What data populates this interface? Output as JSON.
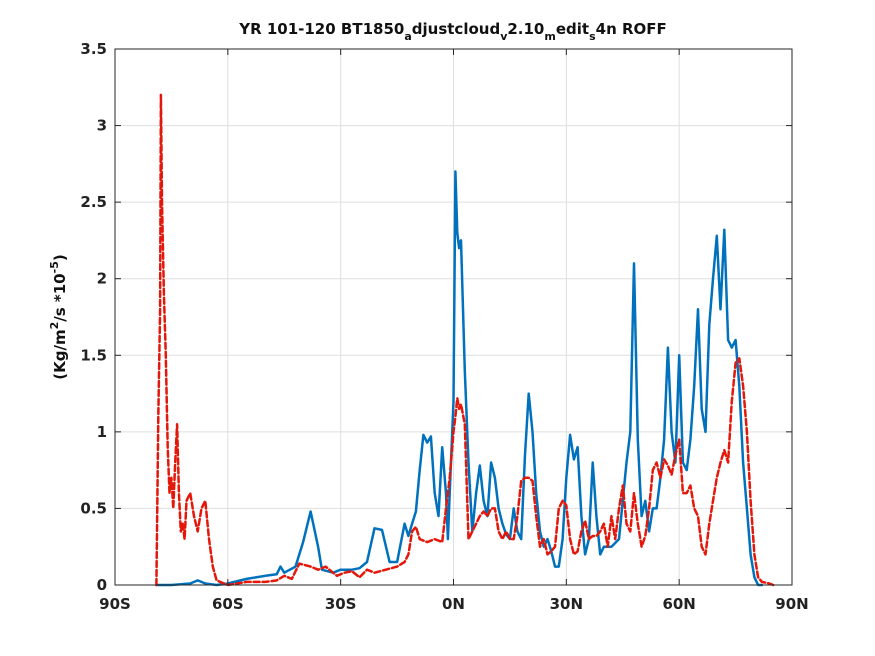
{
  "chart_data": {
    "type": "line",
    "title": "YR 101-120 BT1850adjustcloudv2.10medits4n ROFF",
    "title_parts": [
      "YR 101-120 BT1850",
      "a",
      "djustcloud",
      "v",
      "2.10",
      "m",
      "edit",
      "s",
      "4n ROFF"
    ],
    "ylabel": "(Kg/m2/s   *10-5)",
    "ylabel_parts": [
      "(Kg/m",
      "2",
      "/s   *10",
      "-5",
      ")"
    ],
    "xlim": [
      -90,
      90
    ],
    "ylim": [
      0,
      3.5
    ],
    "grid": true,
    "x_ticks": [
      {
        "v": -90,
        "label": "90S"
      },
      {
        "v": -60,
        "label": "60S"
      },
      {
        "v": -30,
        "label": "30S"
      },
      {
        "v": 0,
        "label": "0N"
      },
      {
        "v": 30,
        "label": "30N"
      },
      {
        "v": 60,
        "label": "60N"
      },
      {
        "v": 90,
        "label": "90N"
      }
    ],
    "y_ticks": [
      {
        "v": 0,
        "label": "0"
      },
      {
        "v": 0.5,
        "label": "0.5"
      },
      {
        "v": 1,
        "label": "1"
      },
      {
        "v": 1.5,
        "label": "1.5"
      },
      {
        "v": 2,
        "label": "2"
      },
      {
        "v": 2.5,
        "label": "2.5"
      },
      {
        "v": 3,
        "label": "3"
      },
      {
        "v": 3.5,
        "label": "3.5"
      }
    ],
    "series": [
      {
        "color": "#0072BD",
        "style": "solid",
        "points": [
          [
            -79,
            0
          ],
          [
            -75,
            0
          ],
          [
            -70,
            0.01
          ],
          [
            -68,
            0.03
          ],
          [
            -66,
            0.01
          ],
          [
            -63,
            0
          ],
          [
            -60,
            0.01
          ],
          [
            -55,
            0.04
          ],
          [
            -50,
            0.06
          ],
          [
            -47,
            0.07
          ],
          [
            -46,
            0.12
          ],
          [
            -45,
            0.08
          ],
          [
            -42,
            0.12
          ],
          [
            -40,
            0.28
          ],
          [
            -38,
            0.48
          ],
          [
            -36,
            0.25
          ],
          [
            -35,
            0.1
          ],
          [
            -32,
            0.08
          ],
          [
            -30,
            0.1
          ],
          [
            -27,
            0.1
          ],
          [
            -25,
            0.11
          ],
          [
            -23,
            0.15
          ],
          [
            -21,
            0.37
          ],
          [
            -19,
            0.36
          ],
          [
            -17,
            0.15
          ],
          [
            -15,
            0.15
          ],
          [
            -13,
            0.4
          ],
          [
            -12,
            0.32
          ],
          [
            -11,
            0.4
          ],
          [
            -10,
            0.48
          ],
          [
            -9,
            0.75
          ],
          [
            -8,
            0.98
          ],
          [
            -7,
            0.93
          ],
          [
            -6,
            0.97
          ],
          [
            -5,
            0.6
          ],
          [
            -4,
            0.45
          ],
          [
            -3,
            0.9
          ],
          [
            -2,
            0.6
          ],
          [
            -1.5,
            0.3
          ],
          [
            -1,
            0.6
          ],
          [
            0,
            1.2
          ],
          [
            0.5,
            2.7
          ],
          [
            1,
            2.3
          ],
          [
            1.5,
            2.2
          ],
          [
            2,
            2.25
          ],
          [
            3,
            1.4
          ],
          [
            4,
            0.8
          ],
          [
            5,
            0.35
          ],
          [
            6,
            0.6
          ],
          [
            7,
            0.78
          ],
          [
            8,
            0.55
          ],
          [
            9,
            0.45
          ],
          [
            10,
            0.8
          ],
          [
            11,
            0.7
          ],
          [
            12,
            0.5
          ],
          [
            13,
            0.4
          ],
          [
            14,
            0.33
          ],
          [
            15,
            0.3
          ],
          [
            16,
            0.5
          ],
          [
            17,
            0.35
          ],
          [
            18,
            0.3
          ],
          [
            19,
            0.85
          ],
          [
            20,
            1.25
          ],
          [
            21,
            1.0
          ],
          [
            22,
            0.6
          ],
          [
            23,
            0.35
          ],
          [
            24,
            0.25
          ],
          [
            25,
            0.3
          ],
          [
            26,
            0.22
          ],
          [
            27,
            0.12
          ],
          [
            28,
            0.12
          ],
          [
            29,
            0.3
          ],
          [
            30,
            0.7
          ],
          [
            31,
            0.98
          ],
          [
            32,
            0.82
          ],
          [
            33,
            0.9
          ],
          [
            34,
            0.45
          ],
          [
            35,
            0.2
          ],
          [
            36,
            0.3
          ],
          [
            37,
            0.8
          ],
          [
            38,
            0.45
          ],
          [
            39,
            0.2
          ],
          [
            40,
            0.25
          ],
          [
            42,
            0.25
          ],
          [
            44,
            0.3
          ],
          [
            46,
            0.8
          ],
          [
            47,
            1.0
          ],
          [
            48,
            2.1
          ],
          [
            49,
            0.95
          ],
          [
            50,
            0.45
          ],
          [
            51,
            0.55
          ],
          [
            52,
            0.35
          ],
          [
            53,
            0.5
          ],
          [
            54,
            0.5
          ],
          [
            55,
            0.7
          ],
          [
            56,
            0.95
          ],
          [
            57,
            1.55
          ],
          [
            58,
            1.0
          ],
          [
            59,
            0.8
          ],
          [
            60,
            1.5
          ],
          [
            61,
            0.8
          ],
          [
            62,
            0.75
          ],
          [
            63,
            0.95
          ],
          [
            64,
            1.3
          ],
          [
            65,
            1.8
          ],
          [
            66,
            1.15
          ],
          [
            67,
            1.0
          ],
          [
            68,
            1.7
          ],
          [
            69,
            2.0
          ],
          [
            70,
            2.28
          ],
          [
            71,
            1.8
          ],
          [
            72,
            2.32
          ],
          [
            73,
            1.6
          ],
          [
            74,
            1.55
          ],
          [
            75,
            1.6
          ],
          [
            76,
            1.3
          ],
          [
            77,
            0.8
          ],
          [
            78,
            0.5
          ],
          [
            79,
            0.2
          ],
          [
            80,
            0.05
          ],
          [
            81,
            0
          ],
          [
            82,
            0
          ]
        ]
      },
      {
        "color": "#E3170A",
        "style": "dashed",
        "points": [
          [
            -79,
            0
          ],
          [
            -78.5,
            1.1
          ],
          [
            -78,
            1.8
          ],
          [
            -77.8,
            3.2
          ],
          [
            -77.5,
            2.5
          ],
          [
            -77,
            1.9
          ],
          [
            -76.5,
            1.5
          ],
          [
            -76,
            0.9
          ],
          [
            -75.5,
            0.6
          ],
          [
            -75,
            0.7
          ],
          [
            -74.5,
            0.5
          ],
          [
            -74,
            0.8
          ],
          [
            -73.5,
            1.05
          ],
          [
            -73,
            0.6
          ],
          [
            -72.5,
            0.35
          ],
          [
            -72,
            0.4
          ],
          [
            -71.5,
            0.3
          ],
          [
            -71,
            0.55
          ],
          [
            -70,
            0.6
          ],
          [
            -69,
            0.45
          ],
          [
            -68,
            0.35
          ],
          [
            -67,
            0.5
          ],
          [
            -66,
            0.55
          ],
          [
            -65,
            0.3
          ],
          [
            -64,
            0.12
          ],
          [
            -63,
            0.03
          ],
          [
            -60,
            0
          ],
          [
            -55,
            0.02
          ],
          [
            -50,
            0.02
          ],
          [
            -47,
            0.03
          ],
          [
            -45,
            0.06
          ],
          [
            -43,
            0.04
          ],
          [
            -41,
            0.14
          ],
          [
            -38,
            0.12
          ],
          [
            -36,
            0.1
          ],
          [
            -34,
            0.12
          ],
          [
            -31,
            0.06
          ],
          [
            -29,
            0.08
          ],
          [
            -27,
            0.09
          ],
          [
            -25,
            0.05
          ],
          [
            -23,
            0.1
          ],
          [
            -21,
            0.08
          ],
          [
            -18,
            0.1
          ],
          [
            -15,
            0.12
          ],
          [
            -13,
            0.15
          ],
          [
            -12,
            0.2
          ],
          [
            -11,
            0.35
          ],
          [
            -10,
            0.38
          ],
          [
            -9,
            0.3
          ],
          [
            -7,
            0.28
          ],
          [
            -5,
            0.3
          ],
          [
            -3,
            0.28
          ],
          [
            -2,
            0.5
          ],
          [
            -1,
            0.7
          ],
          [
            0,
            1.0
          ],
          [
            0.5,
            1.1
          ],
          [
            1,
            1.22
          ],
          [
            1.5,
            1.15
          ],
          [
            2,
            1.18
          ],
          [
            3,
            1.05
          ],
          [
            4,
            0.3
          ],
          [
            5,
            0.35
          ],
          [
            6,
            0.4
          ],
          [
            7,
            0.45
          ],
          [
            8,
            0.48
          ],
          [
            9,
            0.45
          ],
          [
            10,
            0.5
          ],
          [
            11,
            0.5
          ],
          [
            12,
            0.35
          ],
          [
            13,
            0.3
          ],
          [
            14,
            0.35
          ],
          [
            15,
            0.3
          ],
          [
            16,
            0.3
          ],
          [
            17,
            0.45
          ],
          [
            18,
            0.68
          ],
          [
            19,
            0.7
          ],
          [
            20,
            0.7
          ],
          [
            21,
            0.68
          ],
          [
            22,
            0.45
          ],
          [
            23,
            0.25
          ],
          [
            24,
            0.3
          ],
          [
            25,
            0.2
          ],
          [
            26,
            0.22
          ],
          [
            27,
            0.25
          ],
          [
            28,
            0.5
          ],
          [
            29,
            0.55
          ],
          [
            30,
            0.52
          ],
          [
            31,
            0.3
          ],
          [
            32,
            0.2
          ],
          [
            33,
            0.22
          ],
          [
            34,
            0.35
          ],
          [
            35,
            0.42
          ],
          [
            36,
            0.3
          ],
          [
            37,
            0.32
          ],
          [
            38,
            0.32
          ],
          [
            39,
            0.35
          ],
          [
            40,
            0.4
          ],
          [
            41,
            0.25
          ],
          [
            42,
            0.45
          ],
          [
            43,
            0.3
          ],
          [
            44,
            0.5
          ],
          [
            45,
            0.65
          ],
          [
            46,
            0.4
          ],
          [
            47,
            0.35
          ],
          [
            48,
            0.6
          ],
          [
            49,
            0.4
          ],
          [
            50,
            0.25
          ],
          [
            51,
            0.32
          ],
          [
            52,
            0.5
          ],
          [
            53,
            0.75
          ],
          [
            54,
            0.8
          ],
          [
            55,
            0.7
          ],
          [
            56,
            0.82
          ],
          [
            57,
            0.78
          ],
          [
            58,
            0.72
          ],
          [
            59,
            0.85
          ],
          [
            60,
            0.95
          ],
          [
            61,
            0.6
          ],
          [
            62,
            0.6
          ],
          [
            63,
            0.65
          ],
          [
            64,
            0.5
          ],
          [
            65,
            0.45
          ],
          [
            66,
            0.25
          ],
          [
            67,
            0.2
          ],
          [
            68,
            0.4
          ],
          [
            69,
            0.55
          ],
          [
            70,
            0.7
          ],
          [
            71,
            0.8
          ],
          [
            72,
            0.88
          ],
          [
            73,
            0.8
          ],
          [
            74,
            1.2
          ],
          [
            75,
            1.45
          ],
          [
            76,
            1.48
          ],
          [
            77,
            1.3
          ],
          [
            78,
            1.0
          ],
          [
            79,
            0.55
          ],
          [
            80,
            0.2
          ],
          [
            81,
            0.05
          ],
          [
            82,
            0.02
          ],
          [
            84,
            0.01
          ],
          [
            85,
            0
          ]
        ]
      }
    ]
  }
}
